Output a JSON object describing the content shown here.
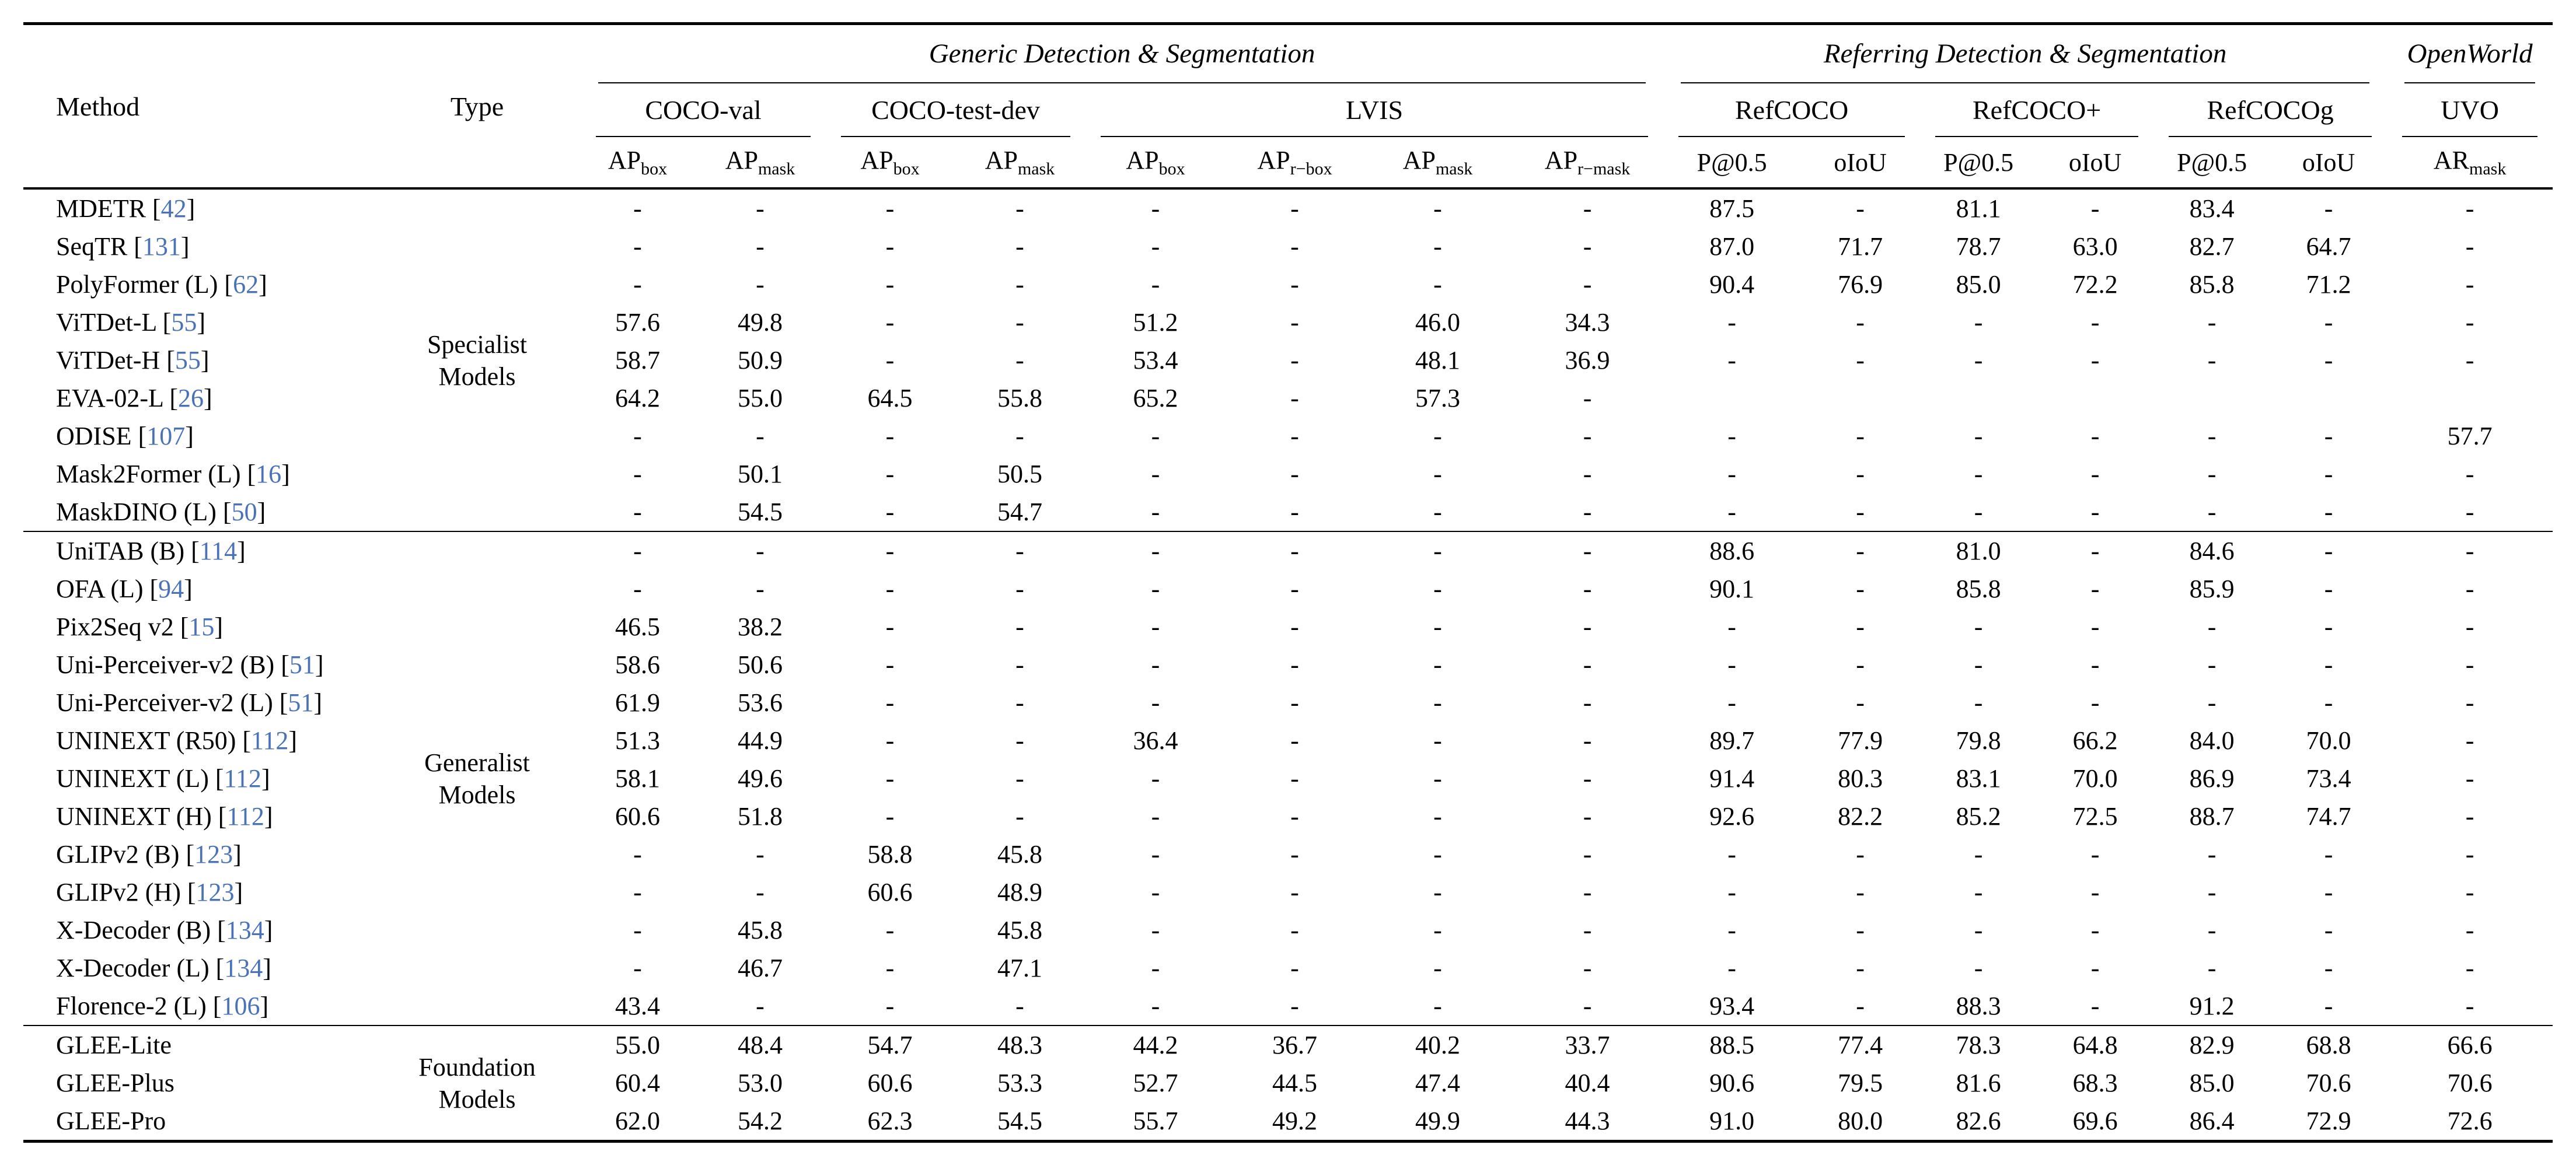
{
  "colors": {
    "citation_number": "#4a72b8",
    "text": "#000000",
    "rule": "#000000",
    "background": "#ffffff"
  },
  "table": {
    "header": {
      "method_label": "Method",
      "type_label": "Type"
    },
    "super_groups": [
      {
        "label": "Generic Detection & Segmentation",
        "span": 8
      },
      {
        "label": "Referring Detection & Segmentation",
        "span": 6
      },
      {
        "label": "OpenWorld",
        "span": 1
      }
    ],
    "datasets": [
      {
        "label": "COCO-val",
        "span": 2
      },
      {
        "label": "COCO-test-dev",
        "span": 2
      },
      {
        "label": "LVIS",
        "span": 4
      },
      {
        "label": "RefCOCO",
        "span": 2
      },
      {
        "label": "RefCOCO+",
        "span": 2
      },
      {
        "label": "RefCOCOg",
        "span": 2
      },
      {
        "label": "UVO",
        "span": 1
      }
    ],
    "metrics": [
      {
        "base": "AP",
        "sub": "box"
      },
      {
        "base": "AP",
        "sub": "mask"
      },
      {
        "base": "AP",
        "sub": "box"
      },
      {
        "base": "AP",
        "sub": "mask"
      },
      {
        "base": "AP",
        "sub": "box"
      },
      {
        "base": "AP",
        "sub": "r−box"
      },
      {
        "base": "AP",
        "sub": "mask"
      },
      {
        "base": "AP",
        "sub": "r−mask"
      },
      {
        "base": "P@0.5",
        "sub": ""
      },
      {
        "base": "oIoU",
        "sub": ""
      },
      {
        "base": "P@0.5",
        "sub": ""
      },
      {
        "base": "oIoU",
        "sub": ""
      },
      {
        "base": "P@0.5",
        "sub": ""
      },
      {
        "base": "oIoU",
        "sub": ""
      },
      {
        "base": "AR",
        "sub": "mask"
      }
    ],
    "groups": [
      {
        "type_label": "Specialist\nModels",
        "rows": [
          {
            "method": "MDETR",
            "cite": "42",
            "values": [
              "-",
              "-",
              "-",
              "-",
              "-",
              "-",
              "-",
              "-",
              "87.5",
              "-",
              "81.1",
              "-",
              "83.4",
              "-",
              "-"
            ]
          },
          {
            "method": "SeqTR",
            "cite": "131",
            "values": [
              "-",
              "-",
              "-",
              "-",
              "-",
              "-",
              "-",
              "-",
              "87.0",
              "71.7",
              "78.7",
              "63.0",
              "82.7",
              "64.7",
              "-"
            ]
          },
          {
            "method": "PolyFormer (L)",
            "cite": "62",
            "values": [
              "-",
              "-",
              "-",
              "-",
              "-",
              "-",
              "-",
              "-",
              "90.4",
              "76.9",
              "85.0",
              "72.2",
              "85.8",
              "71.2",
              "-"
            ]
          },
          {
            "method": "ViTDet-L",
            "cite": "55",
            "values": [
              "57.6",
              "49.8",
              "-",
              "-",
              "51.2",
              "-",
              "46.0",
              "34.3",
              "-",
              "-",
              "-",
              "-",
              "-",
              "-",
              "-"
            ]
          },
          {
            "method": "ViTDet-H",
            "cite": "55",
            "values": [
              "58.7",
              "50.9",
              "-",
              "-",
              "53.4",
              "-",
              "48.1",
              "36.9",
              "-",
              "-",
              "-",
              "-",
              "-",
              "-",
              "-"
            ]
          },
          {
            "method": "EVA-02-L",
            "cite": "26",
            "values": [
              "64.2",
              "55.0",
              "64.5",
              "55.8",
              "65.2",
              "-",
              "57.3",
              "-",
              "",
              "",
              "",
              "",
              "",
              "",
              ""
            ]
          },
          {
            "method": "ODISE",
            "cite": "107",
            "values": [
              "-",
              "-",
              "-",
              "-",
              "-",
              "-",
              "-",
              "-",
              "-",
              "-",
              "-",
              "-",
              "-",
              "-",
              "57.7"
            ]
          },
          {
            "method": "Mask2Former (L)",
            "cite": "16",
            "values": [
              "-",
              "50.1",
              "-",
              "50.5",
              "-",
              "-",
              "-",
              "-",
              "-",
              "-",
              "-",
              "-",
              "-",
              "-",
              "-"
            ]
          },
          {
            "method": "MaskDINO (L)",
            "cite": "50",
            "values": [
              "-",
              "54.5",
              "-",
              "54.7",
              "-",
              "-",
              "-",
              "-",
              "-",
              "-",
              "-",
              "-",
              "-",
              "-",
              "-"
            ]
          }
        ]
      },
      {
        "type_label": "Generalist\nModels",
        "rows": [
          {
            "method": "UniTAB (B)",
            "cite": "114",
            "values": [
              "-",
              "-",
              "-",
              "-",
              "-",
              "-",
              "-",
              "-",
              "88.6",
              "-",
              "81.0",
              "-",
              "84.6",
              "-",
              "-"
            ]
          },
          {
            "method": "OFA (L)",
            "cite": "94",
            "values": [
              "-",
              "-",
              "-",
              "-",
              "-",
              "-",
              "-",
              "-",
              "90.1",
              "-",
              "85.8",
              "-",
              "85.9",
              "-",
              "-"
            ]
          },
          {
            "method": "Pix2Seq v2",
            "cite": "15",
            "values": [
              "46.5",
              "38.2",
              "-",
              "-",
              "-",
              "-",
              "-",
              "-",
              "-",
              "-",
              "-",
              "-",
              "-",
              "-",
              "-"
            ]
          },
          {
            "method": "Uni-Perceiver-v2 (B)",
            "cite": "51",
            "values": [
              "58.6",
              "50.6",
              "-",
              "-",
              "-",
              "-",
              "-",
              "-",
              "-",
              "-",
              "-",
              "-",
              "-",
              "-",
              "-"
            ]
          },
          {
            "method": "Uni-Perceiver-v2 (L)",
            "cite": "51",
            "values": [
              "61.9",
              "53.6",
              "-",
              "-",
              "-",
              "-",
              "-",
              "-",
              "-",
              "-",
              "-",
              "-",
              "-",
              "-",
              "-"
            ]
          },
          {
            "method": "UNINEXT (R50)",
            "cite": "112",
            "values": [
              "51.3",
              "44.9",
              "-",
              "-",
              "36.4",
              "-",
              "-",
              "-",
              "89.7",
              "77.9",
              "79.8",
              "66.2",
              "84.0",
              "70.0",
              "-"
            ]
          },
          {
            "method": "UNINEXT (L)",
            "cite": "112",
            "values": [
              "58.1",
              "49.6",
              "-",
              "-",
              "-",
              "-",
              "-",
              "-",
              "91.4",
              "80.3",
              "83.1",
              "70.0",
              "86.9",
              "73.4",
              "-"
            ]
          },
          {
            "method": "UNINEXT (H)",
            "cite": "112",
            "values": [
              "60.6",
              "51.8",
              "-",
              "-",
              "-",
              "-",
              "-",
              "-",
              "92.6",
              "82.2",
              "85.2",
              "72.5",
              "88.7",
              "74.7",
              "-"
            ]
          },
          {
            "method": "GLIPv2 (B)",
            "cite": "123",
            "values": [
              "-",
              "-",
              "58.8",
              "45.8",
              "-",
              "-",
              "-",
              "-",
              "-",
              "-",
              "-",
              "-",
              "-",
              "-",
              "-"
            ]
          },
          {
            "method": "GLIPv2 (H)",
            "cite": "123",
            "values": [
              "-",
              "-",
              "60.6",
              "48.9",
              "-",
              "-",
              "-",
              "-",
              "-",
              "-",
              "-",
              "-",
              "-",
              "-",
              "-"
            ]
          },
          {
            "method": "X-Decoder (B)",
            "cite": "134",
            "values": [
              "-",
              "45.8",
              "-",
              "45.8",
              "-",
              "-",
              "-",
              "-",
              "-",
              "-",
              "-",
              "-",
              "-",
              "-",
              "-"
            ]
          },
          {
            "method": "X-Decoder (L)",
            "cite": "134",
            "values": [
              "-",
              "46.7",
              "-",
              "47.1",
              "-",
              "-",
              "-",
              "-",
              "-",
              "-",
              "-",
              "-",
              "-",
              "-",
              "-"
            ]
          },
          {
            "method": "Florence-2 (L)",
            "cite": "106",
            "values": [
              "43.4",
              "-",
              "-",
              "-",
              "-",
              "-",
              "-",
              "-",
              "93.4",
              "-",
              "88.3",
              "-",
              "91.2",
              "-",
              "-"
            ]
          }
        ]
      },
      {
        "type_label": "Foundation\nModels",
        "rows": [
          {
            "method": "GLEE-Lite",
            "cite": "",
            "values": [
              "55.0",
              "48.4",
              "54.7",
              "48.3",
              "44.2",
              "36.7",
              "40.2",
              "33.7",
              "88.5",
              "77.4",
              "78.3",
              "64.8",
              "82.9",
              "68.8",
              "66.6"
            ]
          },
          {
            "method": "GLEE-Plus",
            "cite": "",
            "values": [
              "60.4",
              "53.0",
              "60.6",
              "53.3",
              "52.7",
              "44.5",
              "47.4",
              "40.4",
              "90.6",
              "79.5",
              "81.6",
              "68.3",
              "85.0",
              "70.6",
              "70.6"
            ]
          },
          {
            "method": "GLEE-Pro",
            "cite": "",
            "values": [
              "62.0",
              "54.2",
              "62.3",
              "54.5",
              "55.7",
              "49.2",
              "49.9",
              "44.3",
              "91.0",
              "80.0",
              "82.6",
              "69.6",
              "86.4",
              "72.9",
              "72.6"
            ]
          }
        ]
      }
    ]
  }
}
